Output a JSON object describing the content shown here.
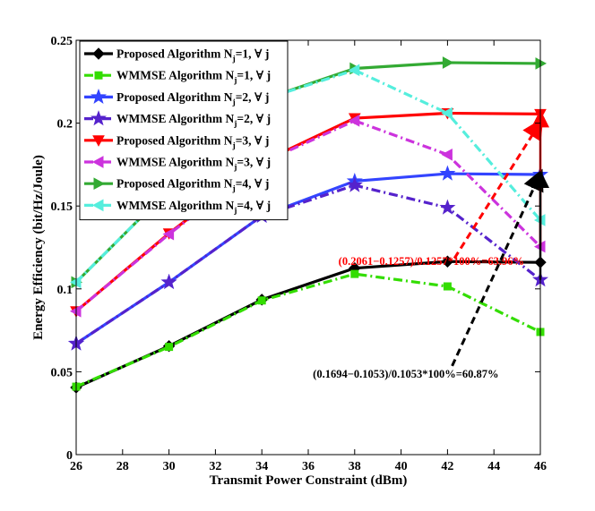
{
  "chart_data": {
    "type": "line",
    "xlabel": "Transmit Power Constraint (dBm)",
    "ylabel": "Energy Efficiency (bit/Hz/Joule)",
    "xlim": [
      26,
      46
    ],
    "ylim": [
      0,
      0.25
    ],
    "xticks": [
      "26",
      "28",
      "30",
      "32",
      "34",
      "36",
      "38",
      "40",
      "42",
      "44",
      "46"
    ],
    "yticks": [
      "0",
      "0.05",
      "0.1",
      "0.15",
      "0.2",
      "0.25"
    ],
    "x": [
      26,
      30,
      34,
      38,
      42,
      46
    ],
    "legend_position": "top-left",
    "legend_suffix": "=1, ∀ j",
    "series": [
      {
        "name": "Proposed Algorithm N",
        "sub": "j",
        "tail": "=1, ∀ j",
        "color": "#000000",
        "dash": "solid",
        "marker": "diamond",
        "values": [
          0.0405,
          0.0655,
          0.0935,
          0.1125,
          0.1165,
          0.116
        ]
      },
      {
        "name": "WMMSE Algorithm N",
        "sub": "j",
        "tail": "=1, ∀ j",
        "color": "#33dd00",
        "dash": "dashdot",
        "marker": "square",
        "values": [
          0.041,
          0.065,
          0.093,
          0.109,
          0.1015,
          0.074
        ]
      },
      {
        "name": "Proposed Algorithm N",
        "sub": "j",
        "tail": "=2, ∀ j",
        "color": "#3344ff",
        "dash": "solid",
        "marker": "star",
        "values": [
          0.067,
          0.104,
          0.144,
          0.165,
          0.1695,
          0.169
        ]
      },
      {
        "name": "WMMSE Algorithm N",
        "sub": "j",
        "tail": "=2, ∀ j",
        "color": "#5522cc",
        "dash": "dashdot",
        "marker": "star",
        "values": [
          0.067,
          0.104,
          0.144,
          0.1625,
          0.149,
          0.1055
        ]
      },
      {
        "name": "Proposed Algorithm N",
        "sub": "j",
        "tail": "=3, ∀ j",
        "color": "#ff0000",
        "dash": "solid",
        "marker": "triangle-down",
        "values": [
          0.0865,
          0.1335,
          0.1765,
          0.203,
          0.206,
          0.2055
        ]
      },
      {
        "name": "WMMSE Algorithm N",
        "sub": "j",
        "tail": "=3, ∀ j",
        "color": "#cc33dd",
        "dash": "dashdot",
        "marker": "triangle-left",
        "values": [
          0.0865,
          0.133,
          0.176,
          0.2015,
          0.181,
          0.1255
        ]
      },
      {
        "name": "Proposed Algorithm N",
        "sub": "j",
        "tail": "=4, ∀ j",
        "color": "#33aa33",
        "dash": "solid",
        "marker": "triangle-right",
        "values": [
          0.104,
          0.16,
          0.214,
          0.233,
          0.2365,
          0.236
        ]
      },
      {
        "name": "WMMSE Algorithm N",
        "sub": "j",
        "tail": "=4, ∀ j",
        "color": "#55eedd",
        "dash": "dashdot",
        "marker": "triangle-left",
        "values": [
          0.104,
          0.16,
          0.214,
          0.232,
          0.206,
          0.1415
        ]
      }
    ],
    "annotations": [
      {
        "text": "(0.2061−0.1257)/0.1257*100%=63.96%",
        "color": "#ff0000",
        "anchor": [
          37.3,
          0.1145
        ],
        "arrow_from": [
          42.3,
          0.1185
        ],
        "arrow_to": [
          46.0,
          0.2005
        ]
      },
      {
        "text": "(0.1694−0.1053)/0.1053*100%=60.87%",
        "color": "#000000",
        "anchor": [
          36.2,
          0.0465
        ],
        "arrow_from": [
          42.2,
          0.0535
        ],
        "arrow_to": [
          46.0,
          0.1695
        ]
      }
    ],
    "markers_vertical": [
      {
        "x": 46.0,
        "y1": 0.126,
        "y2": 0.2055,
        "color": "#ff0000"
      },
      {
        "x": 46.0,
        "y1": 0.1055,
        "y2": 0.169,
        "color": "#000000"
      }
    ]
  }
}
